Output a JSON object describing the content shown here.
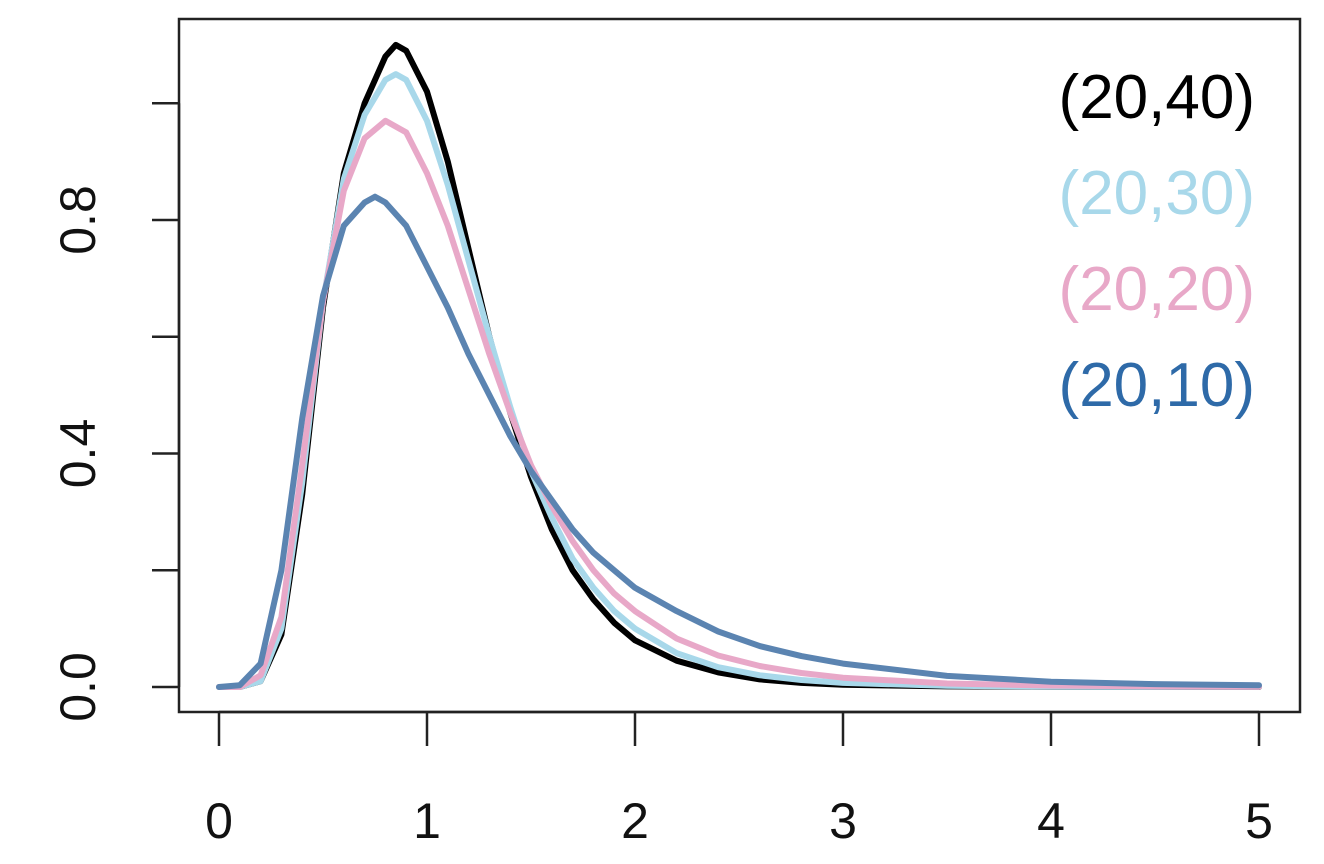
{
  "chart_data": {
    "type": "line",
    "title": "",
    "xlabel": "",
    "ylabel": "",
    "xlim": [
      0,
      5
    ],
    "ylim": [
      0,
      1.1
    ],
    "x_ticks": [
      0,
      1,
      2,
      3,
      4,
      5
    ],
    "x_tick_labels": [
      "0",
      "1",
      "2",
      "3",
      "4",
      "5"
    ],
    "y_ticks": [
      0,
      0.2,
      0.4,
      0.6,
      0.8,
      1.0
    ],
    "y_tick_labels": [
      "0.0",
      "",
      "0.4",
      "",
      "0.8",
      ""
    ],
    "grid": false,
    "legend_position": "top-right",
    "series": [
      {
        "name": "(20,40)",
        "color": "#000000",
        "x": [
          0,
          0.1,
          0.2,
          0.3,
          0.4,
          0.5,
          0.6,
          0.7,
          0.8,
          0.85,
          0.9,
          1.0,
          1.1,
          1.2,
          1.3,
          1.4,
          1.5,
          1.6,
          1.7,
          1.8,
          1.9,
          2.0,
          2.2,
          2.4,
          2.6,
          2.8,
          3.0,
          3.5,
          4.0,
          4.5,
          5.0
        ],
        "values": [
          0,
          0,
          0.01,
          0.09,
          0.33,
          0.65,
          0.88,
          1.0,
          1.08,
          1.1,
          1.09,
          1.02,
          0.9,
          0.75,
          0.6,
          0.47,
          0.36,
          0.27,
          0.2,
          0.15,
          0.11,
          0.08,
          0.045,
          0.025,
          0.013,
          0.007,
          0.004,
          0.001,
          0.0003,
          0.0001,
          0
        ]
      },
      {
        "name": "(20,30)",
        "color": "#a8d8ea",
        "x": [
          0,
          0.1,
          0.2,
          0.3,
          0.4,
          0.5,
          0.6,
          0.7,
          0.8,
          0.85,
          0.9,
          1.0,
          1.1,
          1.2,
          1.3,
          1.4,
          1.5,
          1.6,
          1.7,
          1.8,
          1.9,
          2.0,
          2.2,
          2.4,
          2.6,
          2.8,
          3.0,
          3.5,
          4.0,
          4.5,
          5.0
        ],
        "values": [
          0,
          0,
          0.01,
          0.1,
          0.35,
          0.66,
          0.87,
          0.98,
          1.04,
          1.05,
          1.04,
          0.97,
          0.86,
          0.73,
          0.6,
          0.48,
          0.37,
          0.29,
          0.22,
          0.17,
          0.13,
          0.1,
          0.058,
          0.034,
          0.02,
          0.012,
          0.007,
          0.002,
          0.0007,
          0.0002,
          0.0001
        ]
      },
      {
        "name": "(20,20)",
        "color": "#e8a8c8",
        "x": [
          0,
          0.1,
          0.2,
          0.3,
          0.4,
          0.5,
          0.6,
          0.7,
          0.8,
          0.9,
          1.0,
          1.1,
          1.2,
          1.3,
          1.4,
          1.5,
          1.6,
          1.7,
          1.8,
          1.9,
          2.0,
          2.2,
          2.4,
          2.6,
          2.8,
          3.0,
          3.5,
          4.0,
          4.5,
          5.0
        ],
        "values": [
          0,
          0,
          0.02,
          0.12,
          0.38,
          0.66,
          0.85,
          0.94,
          0.97,
          0.95,
          0.88,
          0.79,
          0.68,
          0.57,
          0.47,
          0.38,
          0.31,
          0.25,
          0.2,
          0.16,
          0.13,
          0.083,
          0.054,
          0.036,
          0.024,
          0.016,
          0.006,
          0.0025,
          0.001,
          0.0004
        ]
      },
      {
        "name": "(20,10)",
        "color": "#5b84b1",
        "x": [
          0,
          0.1,
          0.2,
          0.3,
          0.4,
          0.5,
          0.6,
          0.7,
          0.75,
          0.8,
          0.9,
          1.0,
          1.1,
          1.2,
          1.3,
          1.4,
          1.5,
          1.6,
          1.7,
          1.8,
          1.9,
          2.0,
          2.2,
          2.4,
          2.6,
          2.8,
          3.0,
          3.5,
          4.0,
          4.5,
          5.0
        ],
        "values": [
          0,
          0.003,
          0.04,
          0.2,
          0.46,
          0.67,
          0.79,
          0.83,
          0.84,
          0.83,
          0.79,
          0.72,
          0.65,
          0.57,
          0.5,
          0.43,
          0.37,
          0.32,
          0.27,
          0.23,
          0.2,
          0.17,
          0.13,
          0.095,
          0.07,
          0.053,
          0.04,
          0.019,
          0.009,
          0.005,
          0.003
        ]
      }
    ],
    "legend_colors": [
      "#000000",
      "#a8d8ea",
      "#e8a8c8",
      "#2e6aa8"
    ]
  }
}
